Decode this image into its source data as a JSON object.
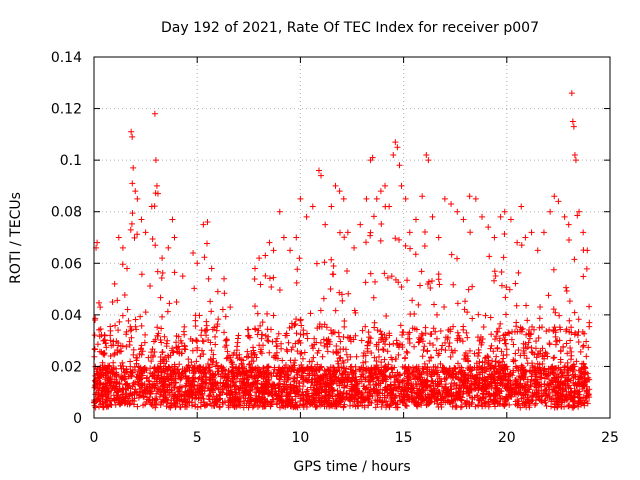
{
  "chart_data": {
    "type": "scatter",
    "title": "Day 192 of 2021, Rate Of TEC Index for receiver p007",
    "xlabel": "GPS time / hours",
    "ylabel": "ROTI / TECUs",
    "xlim": [
      0,
      25
    ],
    "ylim": [
      0,
      0.14
    ],
    "xticks": [
      "0",
      "5",
      "10",
      "15",
      "20",
      "25"
    ],
    "yticks": [
      "0",
      "0.02",
      "0.04",
      "0.06",
      "0.08",
      "0.1",
      "0.12",
      "0.14"
    ],
    "grid": true,
    "marker": "+",
    "color": "#ff0000",
    "x_extent": [
      0,
      24
    ],
    "series": [
      {
        "points": [
          [
            0.05,
            0.038
          ],
          [
            0.1,
            0.066
          ],
          [
            0.15,
            0.068
          ],
          [
            0.3,
            0.043
          ],
          [
            0.5,
            0.03
          ],
          [
            0.9,
            0.045
          ],
          [
            1.0,
            0.052
          ],
          [
            1.2,
            0.07
          ],
          [
            1.4,
            0.066
          ],
          [
            1.6,
            0.058
          ],
          [
            1.8,
            0.111
          ],
          [
            1.85,
            0.109
          ],
          [
            1.9,
            0.097
          ],
          [
            2.0,
            0.088
          ],
          [
            2.1,
            0.085
          ],
          [
            2.3,
            0.077
          ],
          [
            2.5,
            0.072
          ],
          [
            2.8,
            0.082
          ],
          [
            2.95,
            0.118
          ],
          [
            3.0,
            0.1
          ],
          [
            3.05,
            0.09
          ],
          [
            3.1,
            0.087
          ],
          [
            3.3,
            0.062
          ],
          [
            3.6,
            0.066
          ],
          [
            3.8,
            0.077
          ],
          [
            3.9,
            0.07
          ],
          [
            4.0,
            0.045
          ],
          [
            4.3,
            0.055
          ],
          [
            4.8,
            0.064
          ],
          [
            5.0,
            0.06
          ],
          [
            5.3,
            0.075
          ],
          [
            5.5,
            0.076
          ],
          [
            5.7,
            0.058
          ],
          [
            6.0,
            0.049
          ],
          [
            6.3,
            0.054
          ],
          [
            6.6,
            0.043
          ],
          [
            7.0,
            0.032
          ],
          [
            7.5,
            0.032
          ],
          [
            7.8,
            0.058
          ],
          [
            8.0,
            0.062
          ],
          [
            8.3,
            0.063
          ],
          [
            8.5,
            0.068
          ],
          [
            8.7,
            0.065
          ],
          [
            9.0,
            0.08
          ],
          [
            9.2,
            0.07
          ],
          [
            9.5,
            0.065
          ],
          [
            9.8,
            0.07
          ],
          [
            10.0,
            0.085
          ],
          [
            10.3,
            0.078
          ],
          [
            10.6,
            0.082
          ],
          [
            10.9,
            0.096
          ],
          [
            11.0,
            0.094
          ],
          [
            11.2,
            0.075
          ],
          [
            11.5,
            0.082
          ],
          [
            11.7,
            0.09
          ],
          [
            11.9,
            0.088
          ],
          [
            12.1,
            0.085
          ],
          [
            12.3,
            0.072
          ],
          [
            12.6,
            0.066
          ],
          [
            12.9,
            0.075
          ],
          [
            13.2,
            0.085
          ],
          [
            13.4,
            0.1
          ],
          [
            13.5,
            0.101
          ],
          [
            13.7,
            0.085
          ],
          [
            13.9,
            0.088
          ],
          [
            14.1,
            0.09
          ],
          [
            14.3,
            0.082
          ],
          [
            14.5,
            0.102
          ],
          [
            14.6,
            0.107
          ],
          [
            14.7,
            0.105
          ],
          [
            14.8,
            0.098
          ],
          [
            14.9,
            0.09
          ],
          [
            15.1,
            0.085
          ],
          [
            15.3,
            0.072
          ],
          [
            15.6,
            0.077
          ],
          [
            15.9,
            0.086
          ],
          [
            16.1,
            0.102
          ],
          [
            16.2,
            0.1
          ],
          [
            16.4,
            0.078
          ],
          [
            16.7,
            0.07
          ],
          [
            17.0,
            0.085
          ],
          [
            17.3,
            0.083
          ],
          [
            17.6,
            0.08
          ],
          [
            17.9,
            0.077
          ],
          [
            18.2,
            0.086
          ],
          [
            18.5,
            0.085
          ],
          [
            18.8,
            0.078
          ],
          [
            19.1,
            0.074
          ],
          [
            19.4,
            0.07
          ],
          [
            19.7,
            0.078
          ],
          [
            19.9,
            0.08
          ],
          [
            20.2,
            0.077
          ],
          [
            20.5,
            0.068
          ],
          [
            20.7,
            0.082
          ],
          [
            20.9,
            0.07
          ],
          [
            21.2,
            0.072
          ],
          [
            21.5,
            0.065
          ],
          [
            21.8,
            0.072
          ],
          [
            22.1,
            0.08
          ],
          [
            22.3,
            0.086
          ],
          [
            22.5,
            0.084
          ],
          [
            22.8,
            0.078
          ],
          [
            23.0,
            0.075
          ],
          [
            23.15,
            0.126
          ],
          [
            23.2,
            0.115
          ],
          [
            23.25,
            0.113
          ],
          [
            23.3,
            0.102
          ],
          [
            23.35,
            0.1
          ],
          [
            23.5,
            0.08
          ],
          [
            23.7,
            0.072
          ],
          [
            23.9,
            0.065
          ],
          [
            24.0,
            0.037
          ]
        ]
      }
    ]
  }
}
